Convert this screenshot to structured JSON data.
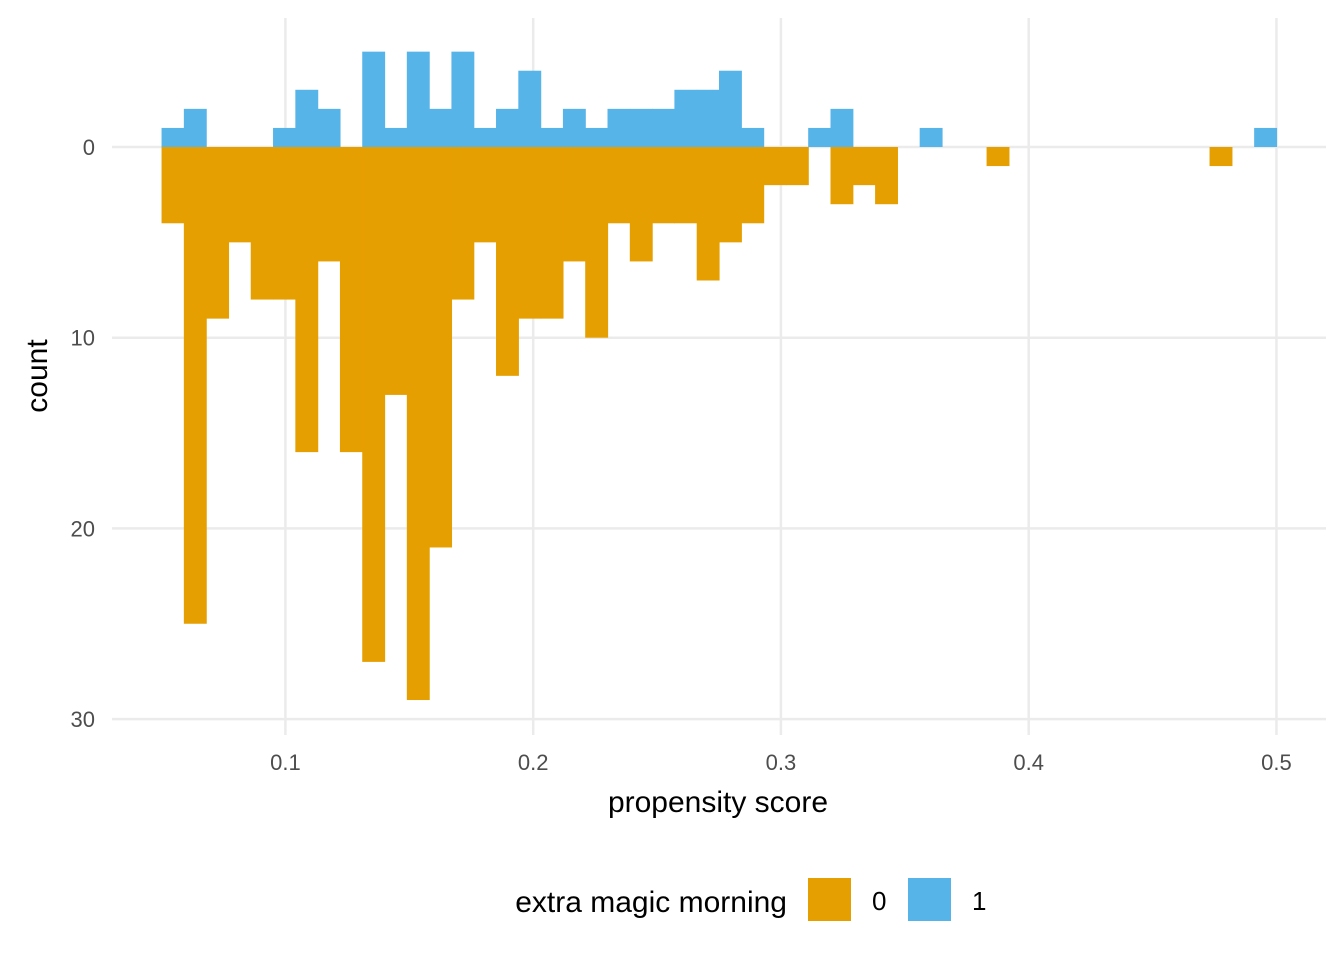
{
  "chart_data": {
    "type": "bar",
    "subtype": "mirrored-histogram",
    "xlabel": "propensity score",
    "ylabel": "count",
    "xlim": [
      0.03,
      0.52
    ],
    "ylim": [
      -5,
      30
    ],
    "y_reversed": true,
    "x_ticks": [
      "0.1",
      "0.2",
      "0.3",
      "0.4",
      "0.5"
    ],
    "y_ticks": [
      "0",
      "10",
      "20",
      "30"
    ],
    "bin_width": 0.009,
    "grid": true,
    "legend": {
      "title": "extra magic morning",
      "position": "bottom",
      "items": [
        {
          "label": "0",
          "color": "#E69F00"
        },
        {
          "label": "1",
          "color": "#56B4E9"
        }
      ]
    },
    "series": [
      {
        "name": "0",
        "color": "#E69F00",
        "direction": "down",
        "bins": [
          {
            "x": 0.0545,
            "count": 4
          },
          {
            "x": 0.0635,
            "count": 25
          },
          {
            "x": 0.0725,
            "count": 9
          },
          {
            "x": 0.0815,
            "count": 5
          },
          {
            "x": 0.0905,
            "count": 8
          },
          {
            "x": 0.0995,
            "count": 8
          },
          {
            "x": 0.1085,
            "count": 16
          },
          {
            "x": 0.1175,
            "count": 6
          },
          {
            "x": 0.1265,
            "count": 16
          },
          {
            "x": 0.1355,
            "count": 27
          },
          {
            "x": 0.1445,
            "count": 13
          },
          {
            "x": 0.1535,
            "count": 29
          },
          {
            "x": 0.1625,
            "count": 21
          },
          {
            "x": 0.1715,
            "count": 8
          },
          {
            "x": 0.1805,
            "count": 5
          },
          {
            "x": 0.1895,
            "count": 12
          },
          {
            "x": 0.1985,
            "count": 9
          },
          {
            "x": 0.2075,
            "count": 9
          },
          {
            "x": 0.2165,
            "count": 6
          },
          {
            "x": 0.2255,
            "count": 10
          },
          {
            "x": 0.2345,
            "count": 4
          },
          {
            "x": 0.2435,
            "count": 6
          },
          {
            "x": 0.2525,
            "count": 4
          },
          {
            "x": 0.2615,
            "count": 4
          },
          {
            "x": 0.2705,
            "count": 7
          },
          {
            "x": 0.2795,
            "count": 5
          },
          {
            "x": 0.2885,
            "count": 4
          },
          {
            "x": 0.2975,
            "count": 2
          },
          {
            "x": 0.3065,
            "count": 2
          },
          {
            "x": 0.3245,
            "count": 3
          },
          {
            "x": 0.3335,
            "count": 2
          },
          {
            "x": 0.3425,
            "count": 3
          },
          {
            "x": 0.3875,
            "count": 1
          },
          {
            "x": 0.4775,
            "count": 1
          }
        ]
      },
      {
        "name": "1",
        "color": "#56B4E9",
        "direction": "up",
        "bins": [
          {
            "x": 0.0545,
            "count": 1
          },
          {
            "x": 0.0635,
            "count": 2
          },
          {
            "x": 0.0995,
            "count": 1
          },
          {
            "x": 0.1085,
            "count": 3
          },
          {
            "x": 0.1175,
            "count": 2
          },
          {
            "x": 0.1355,
            "count": 5
          },
          {
            "x": 0.1445,
            "count": 1
          },
          {
            "x": 0.1535,
            "count": 5
          },
          {
            "x": 0.1625,
            "count": 2
          },
          {
            "x": 0.1715,
            "count": 5
          },
          {
            "x": 0.1805,
            "count": 1
          },
          {
            "x": 0.1895,
            "count": 2
          },
          {
            "x": 0.1985,
            "count": 4
          },
          {
            "x": 0.2075,
            "count": 1
          },
          {
            "x": 0.2165,
            "count": 2
          },
          {
            "x": 0.2255,
            "count": 1
          },
          {
            "x": 0.2345,
            "count": 2
          },
          {
            "x": 0.2435,
            "count": 2
          },
          {
            "x": 0.2525,
            "count": 2
          },
          {
            "x": 0.2615,
            "count": 3
          },
          {
            "x": 0.2705,
            "count": 3
          },
          {
            "x": 0.2795,
            "count": 4
          },
          {
            "x": 0.2885,
            "count": 1
          },
          {
            "x": 0.3155,
            "count": 1
          },
          {
            "x": 0.3245,
            "count": 2
          },
          {
            "x": 0.3605,
            "count": 1
          },
          {
            "x": 0.4955,
            "count": 1
          }
        ]
      }
    ]
  }
}
